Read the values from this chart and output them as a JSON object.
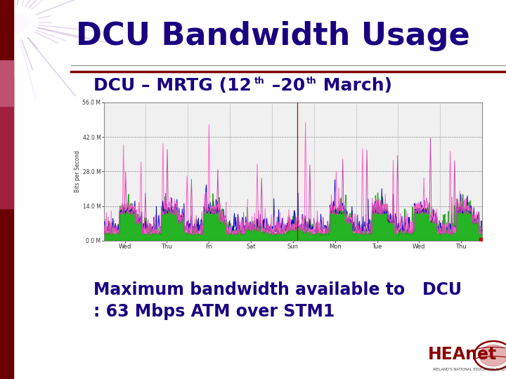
{
  "title": "DCU Bandwidth Usage",
  "body_text_line1": "Maximum bandwidth available to   DCU",
  "body_text_line2": ": 63 Mbps ATM over STM1",
  "title_color": "#1a0080",
  "subtitle_color": "#1a0080",
  "body_text_color": "#1a0080",
  "title_fontsize": 32,
  "subtitle_fontsize": 18,
  "body_fontsize": 17,
  "mrtg_ylabel": "Bits per Second",
  "mrtg_yticks": [
    "0.0 M",
    "14.0 M",
    "28.0 M",
    "42.0 M",
    "56.0 M"
  ],
  "mrtg_ytick_vals": [
    0,
    14,
    28,
    42,
    56
  ],
  "mrtg_xtick_labels": [
    "Wed",
    "Thu",
    "Fri",
    "Sat",
    "Sun",
    "Mon",
    "Tue",
    "Wed",
    "Thu"
  ],
  "mrtg_xtick_positions": [
    0.5,
    1.5,
    2.5,
    3.5,
    4.5,
    5.5,
    6.5,
    7.5,
    8.5
  ],
  "n_days": 9,
  "red_vline_x": 4.6,
  "green_color": "#00aa00",
  "blue_color": "#0000cc",
  "pink_color1": "#ff66cc",
  "pink_color2": "#cc44aa",
  "red_vline_color": "#cc0000",
  "grid_color": "#888888",
  "chart_bg": "#f0f0f0",
  "left_bar_dark": "#6b0000",
  "left_bar_mid": "#a02040",
  "left_bar_light": "#c05070",
  "sep_line_gray": "#888888",
  "sep_line_red": "#800000",
  "heanet_color": "#8b0000"
}
